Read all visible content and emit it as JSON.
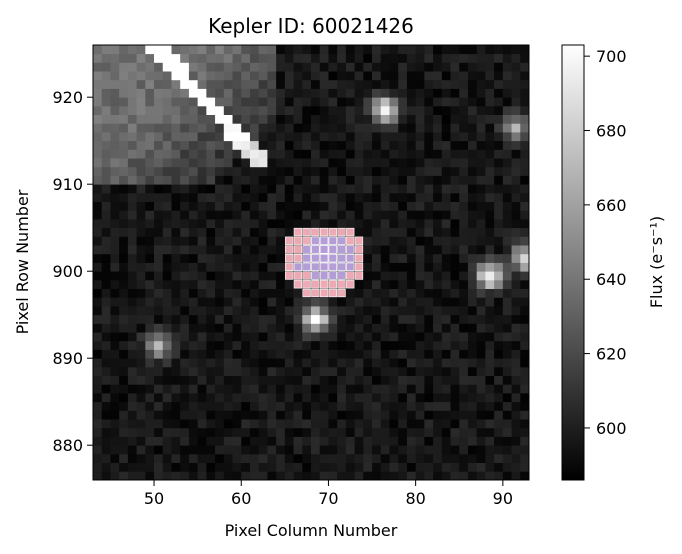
{
  "chart_data": {
    "type": "heatmap",
    "title": "Kepler ID: 60021426",
    "xlabel": "Pixel Column Number",
    "ylabel": "Pixel Row Number",
    "xlim": [
      43,
      93
    ],
    "ylim": [
      876,
      926
    ],
    "x_ticks": [
      50,
      60,
      70,
      80,
      90
    ],
    "y_ticks": [
      880,
      890,
      900,
      910,
      920
    ],
    "colorbar": {
      "label": "Flux (e⁻s⁻¹)",
      "colormap": "gray",
      "range": [
        586,
        703
      ],
      "ticks": [
        600,
        620,
        640,
        660,
        680,
        700
      ]
    },
    "background_flux": 596,
    "sources": [
      {
        "col": 69,
        "row": 902,
        "peak_flux": 703
      },
      {
        "col": 76,
        "row": 918,
        "peak_flux": 703
      },
      {
        "col": 88,
        "row": 899,
        "peak_flux": 703
      },
      {
        "col": 68,
        "row": 894,
        "peak_flux": 703
      },
      {
        "col": 92,
        "row": 901,
        "peak_flux": 690
      },
      {
        "col": 50,
        "row": 891,
        "peak_flux": 670
      },
      {
        "col": 91,
        "row": 916,
        "peak_flux": 665
      }
    ],
    "saturated_features": [
      {
        "description": "bright diagonal streak",
        "from_col": 49,
        "from_row": 926,
        "to_col": 62,
        "to_row": 912
      },
      {
        "description": "bright gradient region",
        "col_range": [
          43,
          63
        ],
        "row_range": [
          910,
          926
        ]
      }
    ],
    "aperture_mask": {
      "outer_color": "#ffb6c1",
      "inner_color": "#b19cd9",
      "outer_rows": [
        {
          "row": 904,
          "cols": [
            66,
            72
          ]
        },
        {
          "row": 903,
          "cols": [
            65,
            73
          ]
        },
        {
          "row": 902,
          "cols": [
            65,
            73
          ]
        },
        {
          "row": 901,
          "cols": [
            65,
            73
          ]
        },
        {
          "row": 900,
          "cols": [
            65,
            73
          ]
        },
        {
          "row": 899,
          "cols": [
            65,
            73
          ]
        },
        {
          "row": 898,
          "cols": [
            66,
            72
          ]
        },
        {
          "row": 897,
          "cols": [
            67,
            71
          ]
        }
      ],
      "inner_rows": [
        {
          "row": 903,
          "cols": [
            68,
            71
          ]
        },
        {
          "row": 902,
          "cols": [
            67,
            72
          ]
        },
        {
          "row": 901,
          "cols": [
            67,
            72
          ]
        },
        {
          "row": 900,
          "cols": [
            67,
            72
          ]
        },
        {
          "row": 899,
          "cols": [
            68,
            71
          ]
        },
        {
          "row": 900,
          "cols": [
            66,
            66
          ]
        }
      ]
    }
  }
}
